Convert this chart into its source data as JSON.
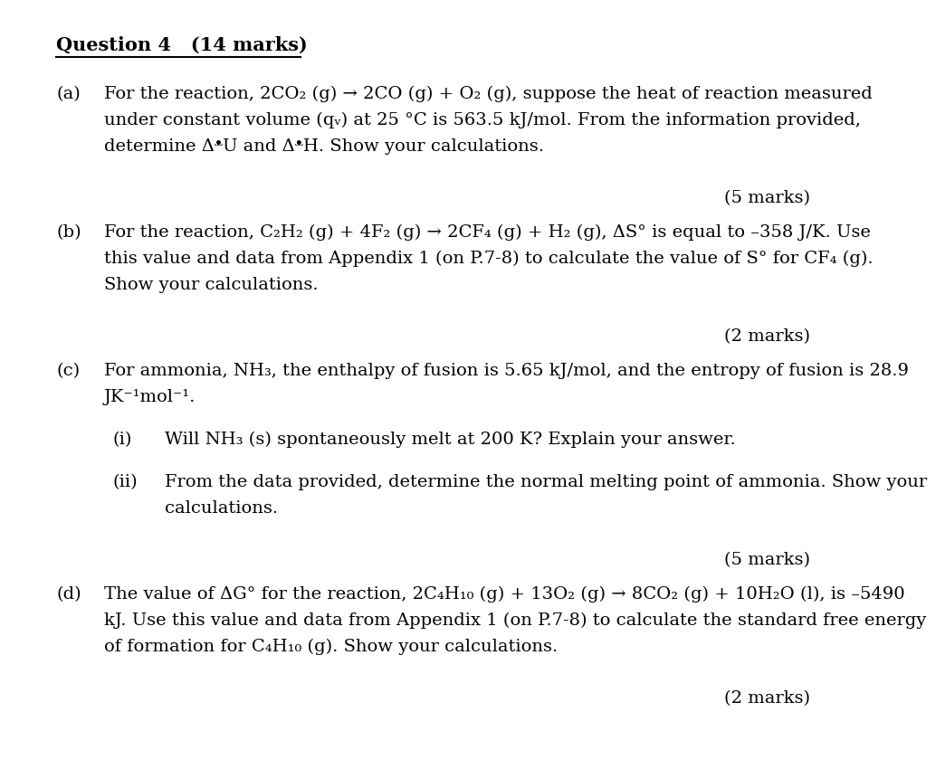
{
  "bg_color": "#ffffff",
  "text_color": "#000000",
  "title": "Question 4   (14 marks)",
  "sections": [
    {
      "label": "(a)",
      "lines": [
        "For the reaction, 2CO₂ (g) → 2CO (g) + O₂ (g), suppose the heat of reaction measured",
        "under constant volume (qᵥ) at 25 °C is 563.5 kJ/mol. From the information provided,",
        "determine ΔᵜU and ΔᵜH. Show your calculations."
      ],
      "marks": "(5 marks)"
    },
    {
      "label": "(b)",
      "lines": [
        "For the reaction, C₂H₂ (g) + 4F₂ (g) → 2CF₄ (g) + H₂ (g), ΔS° is equal to –358 J/K. Use",
        "this value and data from Appendix 1 (on P.7-8) to calculate the value of S° for CF₄ (g).",
        "Show your calculations."
      ],
      "marks": "(2 marks)"
    },
    {
      "label": "(c)",
      "lines": [
        "For ammonia, NH₃, the enthalpy of fusion is 5.65 kJ/mol, and the entropy of fusion is 28.9",
        "JK⁻¹mol⁻¹."
      ],
      "marks": null,
      "sub": [
        {
          "label": "(i)",
          "lines": [
            "Will NH₃ (s) spontaneously melt at 200 K? Explain your answer."
          ],
          "marks": null
        },
        {
          "label": "(ii)",
          "lines": [
            "From the data provided, determine the normal melting point of ammonia. Show your",
            "calculations."
          ],
          "marks": "(5 marks)"
        }
      ]
    },
    {
      "label": "(d)",
      "lines": [
        "The value of ΔG° for the reaction, 2C₄H₁₀ (g) + 13O₂ (g) → 8CO₂ (g) + 10H₂O (l), is –5490",
        "kJ. Use this value and data from Appendix 1 (on P.7-8) to calculate the standard free energy",
        "of formation for C₄H₁₀ (g). Show your calculations."
      ],
      "marks": "(2 marks)"
    }
  ],
  "font_size": 14,
  "title_font_size": 15
}
